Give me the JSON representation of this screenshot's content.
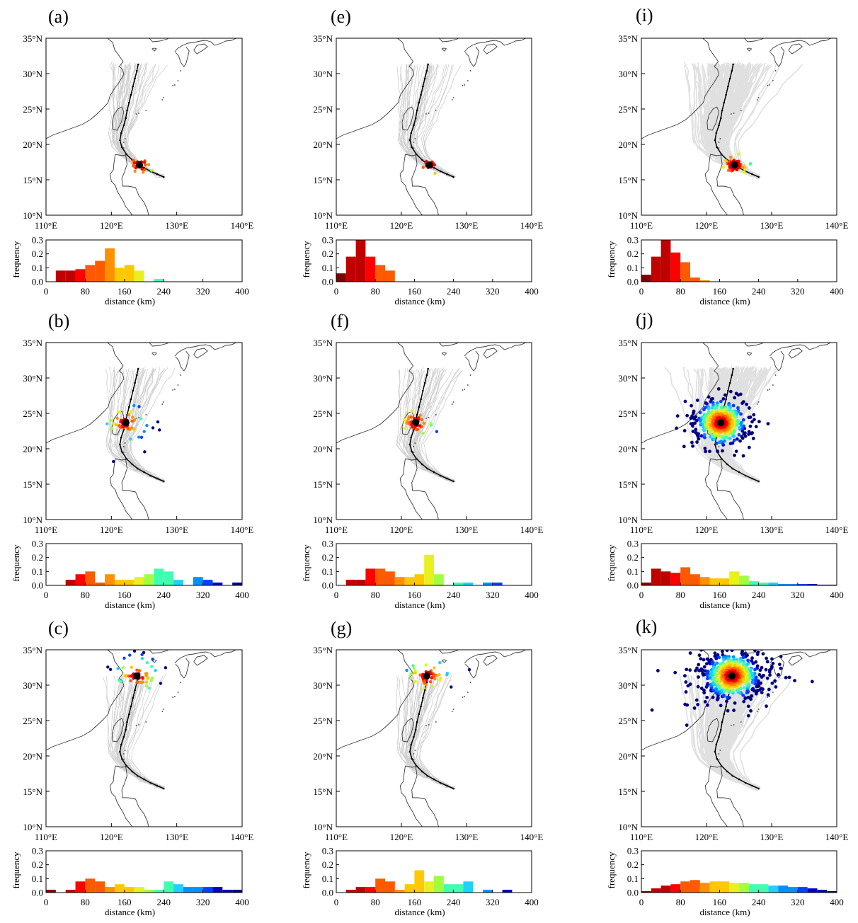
{
  "figure": {
    "map_axes": {
      "lat_ticks": [
        "35°N",
        "30°N",
        "25°N",
        "20°N",
        "15°N",
        "10°N"
      ],
      "lon_ticks": [
        "110°E",
        "120°E",
        "130°E",
        "140°E"
      ],
      "lon_range": [
        110,
        140
      ],
      "lat_range": [
        10,
        35
      ]
    },
    "hist_axes": {
      "ylabel": "frequency",
      "xlabel": "distance (km)",
      "yticks": [
        "0.3",
        "0.2",
        "0.1",
        "0.0"
      ],
      "xticks": [
        "0",
        "80",
        "160",
        "240",
        "320",
        "400"
      ],
      "ylim": [
        0,
        0.3
      ],
      "xlim": [
        0,
        400
      ]
    },
    "colors": {
      "coast": "#3a3a3a",
      "ensemble_tracks": "#c8c8c8",
      "observed_track": "#000000",
      "colormap": [
        "#7f0000",
        "#c00000",
        "#ff0000",
        "#ff5a00",
        "#ff9000",
        "#ffc800",
        "#e8f020",
        "#a0ff40",
        "#40ffb0",
        "#20d0ff",
        "#0090ff",
        "#0040ff",
        "#0000c0",
        "#00007f"
      ]
    },
    "observed_track": [
      {
        "lon": 128.0,
        "lat": 15.4
      },
      {
        "lon": 127.0,
        "lat": 15.8
      },
      {
        "lon": 126.0,
        "lat": 16.2
      },
      {
        "lon": 125.0,
        "lat": 16.7
      },
      {
        "lon": 124.0,
        "lat": 17.2
      },
      {
        "lon": 123.2,
        "lat": 17.8
      },
      {
        "lon": 122.3,
        "lat": 18.6
      },
      {
        "lon": 121.6,
        "lat": 19.6
      },
      {
        "lon": 121.3,
        "lat": 20.6
      },
      {
        "lon": 121.5,
        "lat": 21.6
      },
      {
        "lon": 121.9,
        "lat": 22.7
      },
      {
        "lon": 122.2,
        "lat": 23.7
      },
      {
        "lon": 122.4,
        "lat": 24.8
      },
      {
        "lon": 122.7,
        "lat": 25.9
      },
      {
        "lon": 123.0,
        "lat": 27.0
      },
      {
        "lon": 123.3,
        "lat": 28.2
      },
      {
        "lon": 123.6,
        "lat": 29.3
      },
      {
        "lon": 123.9,
        "lat": 30.4
      },
      {
        "lon": 124.1,
        "lat": 31.3
      }
    ]
  },
  "panels": [
    {
      "label": "(a)",
      "center": {
        "lon": 124.3,
        "lat": 17.1
      },
      "tracks": "sparse",
      "points": {
        "n": 30,
        "spread": 1.0
      },
      "chart_data": {
        "type": "bar",
        "bin_width": 20,
        "xlabel": "distance (km)",
        "ylabel": "frequency",
        "ylim": [
          0,
          0.3
        ],
        "xlim": [
          0,
          400
        ],
        "bins": [
          {
            "x": 20,
            "y": 0.08
          },
          {
            "x": 40,
            "y": 0.08
          },
          {
            "x": 60,
            "y": 0.09
          },
          {
            "x": 80,
            "y": 0.12
          },
          {
            "x": 100,
            "y": 0.15
          },
          {
            "x": 120,
            "y": 0.24
          },
          {
            "x": 140,
            "y": 0.1
          },
          {
            "x": 160,
            "y": 0.12
          },
          {
            "x": 180,
            "y": 0.08
          },
          {
            "x": 220,
            "y": 0.02
          }
        ]
      }
    },
    {
      "label": "(b)",
      "center": {
        "lon": 122.2,
        "lat": 23.7
      },
      "tracks": "sparse",
      "points": {
        "n": 60,
        "spread": 2.4
      },
      "chart_data": {
        "type": "bar",
        "bin_width": 20,
        "xlabel": "distance (km)",
        "ylabel": "frequency",
        "ylim": [
          0,
          0.3
        ],
        "xlim": [
          0,
          400
        ],
        "bins": [
          {
            "x": 40,
            "y": 0.04
          },
          {
            "x": 60,
            "y": 0.08
          },
          {
            "x": 80,
            "y": 0.1
          },
          {
            "x": 100,
            "y": 0.02
          },
          {
            "x": 120,
            "y": 0.08
          },
          {
            "x": 140,
            "y": 0.04
          },
          {
            "x": 160,
            "y": 0.04
          },
          {
            "x": 180,
            "y": 0.06
          },
          {
            "x": 200,
            "y": 0.08
          },
          {
            "x": 220,
            "y": 0.12
          },
          {
            "x": 240,
            "y": 0.1
          },
          {
            "x": 260,
            "y": 0.04
          },
          {
            "x": 300,
            "y": 0.06
          },
          {
            "x": 320,
            "y": 0.04
          },
          {
            "x": 340,
            "y": 0.02
          },
          {
            "x": 380,
            "y": 0.02
          }
        ]
      }
    },
    {
      "label": "(c)",
      "center": {
        "lon": 123.9,
        "lat": 31.3
      },
      "tracks": "sparse",
      "points": {
        "n": 60,
        "spread": 2.8
      },
      "chart_data": {
        "type": "bar",
        "bin_width": 20,
        "xlabel": "distance (km)",
        "ylabel": "frequency",
        "ylim": [
          0,
          0.3
        ],
        "xlim": [
          0,
          400
        ],
        "bins": [
          {
            "x": 0,
            "y": 0.02
          },
          {
            "x": 40,
            "y": 0.02
          },
          {
            "x": 60,
            "y": 0.08
          },
          {
            "x": 80,
            "y": 0.1
          },
          {
            "x": 100,
            "y": 0.08
          },
          {
            "x": 120,
            "y": 0.04
          },
          {
            "x": 140,
            "y": 0.06
          },
          {
            "x": 160,
            "y": 0.04
          },
          {
            "x": 180,
            "y": 0.04
          },
          {
            "x": 200,
            "y": 0.02
          },
          {
            "x": 220,
            "y": 0.02
          },
          {
            "x": 240,
            "y": 0.08
          },
          {
            "x": 260,
            "y": 0.06
          },
          {
            "x": 280,
            "y": 0.04
          },
          {
            "x": 300,
            "y": 0.04
          },
          {
            "x": 320,
            "y": 0.04
          },
          {
            "x": 340,
            "y": 0.04
          },
          {
            "x": 360,
            "y": 0.02
          },
          {
            "x": 380,
            "y": 0.02
          }
        ]
      }
    },
    {
      "label": "(e)",
      "center": {
        "lon": 124.3,
        "lat": 17.1
      },
      "tracks": "sparse",
      "points": {
        "n": 25,
        "spread": 0.7
      },
      "chart_data": {
        "type": "bar",
        "bin_width": 20,
        "xlabel": "distance (km)",
        "ylabel": "frequency",
        "ylim": [
          0,
          0.3
        ],
        "xlim": [
          0,
          400
        ],
        "bins": [
          {
            "x": 0,
            "y": 0.06
          },
          {
            "x": 20,
            "y": 0.18
          },
          {
            "x": 40,
            "y": 0.3
          },
          {
            "x": 60,
            "y": 0.18
          },
          {
            "x": 80,
            "y": 0.12
          },
          {
            "x": 100,
            "y": 0.08
          }
        ]
      }
    },
    {
      "label": "(f)",
      "center": {
        "lon": 122.2,
        "lat": 23.7
      },
      "tracks": "sparse",
      "points": {
        "n": 50,
        "spread": 1.8
      },
      "chart_data": {
        "type": "bar",
        "bin_width": 20,
        "xlabel": "distance (km)",
        "ylabel": "frequency",
        "ylim": [
          0,
          0.3
        ],
        "xlim": [
          0,
          400
        ],
        "bins": [
          {
            "x": 20,
            "y": 0.04
          },
          {
            "x": 40,
            "y": 0.04
          },
          {
            "x": 60,
            "y": 0.12
          },
          {
            "x": 80,
            "y": 0.12
          },
          {
            "x": 100,
            "y": 0.1
          },
          {
            "x": 120,
            "y": 0.06
          },
          {
            "x": 140,
            "y": 0.06
          },
          {
            "x": 160,
            "y": 0.08
          },
          {
            "x": 180,
            "y": 0.22
          },
          {
            "x": 200,
            "y": 0.08
          },
          {
            "x": 240,
            "y": 0.02
          },
          {
            "x": 260,
            "y": 0.02
          },
          {
            "x": 300,
            "y": 0.02
          },
          {
            "x": 320,
            "y": 0.02
          }
        ]
      }
    },
    {
      "label": "(g)",
      "center": {
        "lon": 123.9,
        "lat": 31.3
      },
      "tracks": "sparse",
      "points": {
        "n": 55,
        "spread": 2.2
      },
      "chart_data": {
        "type": "bar",
        "bin_width": 20,
        "xlabel": "distance (km)",
        "ylabel": "frequency",
        "ylim": [
          0,
          0.3
        ],
        "xlim": [
          0,
          400
        ],
        "bins": [
          {
            "x": 20,
            "y": 0.02
          },
          {
            "x": 40,
            "y": 0.04
          },
          {
            "x": 60,
            "y": 0.04
          },
          {
            "x": 80,
            "y": 0.1
          },
          {
            "x": 100,
            "y": 0.08
          },
          {
            "x": 120,
            "y": 0.02
          },
          {
            "x": 140,
            "y": 0.06
          },
          {
            "x": 160,
            "y": 0.16
          },
          {
            "x": 180,
            "y": 0.08
          },
          {
            "x": 200,
            "y": 0.12
          },
          {
            "x": 220,
            "y": 0.06
          },
          {
            "x": 240,
            "y": 0.06
          },
          {
            "x": 260,
            "y": 0.08
          },
          {
            "x": 300,
            "y": 0.02
          },
          {
            "x": 340,
            "y": 0.02
          }
        ]
      }
    },
    {
      "label": "(i)",
      "center": {
        "lon": 124.3,
        "lat": 17.1
      },
      "tracks": "dense",
      "points": {
        "n": 120,
        "spread": 0.8
      },
      "chart_data": {
        "type": "bar",
        "bin_width": 20,
        "xlabel": "distance (km)",
        "ylabel": "frequency",
        "ylim": [
          0,
          0.3
        ],
        "xlim": [
          0,
          400
        ],
        "bins": [
          {
            "x": 0,
            "y": 0.05
          },
          {
            "x": 20,
            "y": 0.18
          },
          {
            "x": 40,
            "y": 0.3
          },
          {
            "x": 60,
            "y": 0.21
          },
          {
            "x": 80,
            "y": 0.14
          },
          {
            "x": 100,
            "y": 0.03
          },
          {
            "x": 120,
            "y": 0.01
          }
        ]
      }
    },
    {
      "label": "(j)",
      "center": {
        "lon": 122.2,
        "lat": 23.7
      },
      "tracks": "dense",
      "points": {
        "n": 700,
        "spread": 2.8
      },
      "chart_data": {
        "type": "bar",
        "bin_width": 20,
        "xlabel": "distance (km)",
        "ylabel": "frequency",
        "ylim": [
          0,
          0.3
        ],
        "xlim": [
          0,
          400
        ],
        "bins": [
          {
            "x": 0,
            "y": 0.02
          },
          {
            "x": 20,
            "y": 0.12
          },
          {
            "x": 40,
            "y": 0.1
          },
          {
            "x": 60,
            "y": 0.09
          },
          {
            "x": 80,
            "y": 0.13
          },
          {
            "x": 100,
            "y": 0.08
          },
          {
            "x": 120,
            "y": 0.06
          },
          {
            "x": 140,
            "y": 0.05
          },
          {
            "x": 160,
            "y": 0.05
          },
          {
            "x": 180,
            "y": 0.1
          },
          {
            "x": 200,
            "y": 0.07
          },
          {
            "x": 220,
            "y": 0.03
          },
          {
            "x": 240,
            "y": 0.02
          },
          {
            "x": 260,
            "y": 0.02
          },
          {
            "x": 280,
            "y": 0.01
          },
          {
            "x": 300,
            "y": 0.01
          },
          {
            "x": 320,
            "y": 0.01
          },
          {
            "x": 340,
            "y": 0.01
          },
          {
            "x": 360,
            "y": 0.005
          },
          {
            "x": 380,
            "y": 0.005
          }
        ]
      }
    },
    {
      "label": "(k)",
      "center": {
        "lon": 123.9,
        "lat": 31.3
      },
      "tracks": "dense",
      "points": {
        "n": 900,
        "spread": 3.4
      },
      "chart_data": {
        "type": "bar",
        "bin_width": 20,
        "xlabel": "distance (km)",
        "ylabel": "frequency",
        "ylim": [
          0,
          0.3
        ],
        "xlim": [
          0,
          400
        ],
        "bins": [
          {
            "x": 0,
            "y": 0.01
          },
          {
            "x": 20,
            "y": 0.03
          },
          {
            "x": 40,
            "y": 0.05
          },
          {
            "x": 60,
            "y": 0.06
          },
          {
            "x": 80,
            "y": 0.08
          },
          {
            "x": 100,
            "y": 0.09
          },
          {
            "x": 120,
            "y": 0.07
          },
          {
            "x": 140,
            "y": 0.08
          },
          {
            "x": 160,
            "y": 0.08
          },
          {
            "x": 180,
            "y": 0.07
          },
          {
            "x": 200,
            "y": 0.07
          },
          {
            "x": 220,
            "y": 0.06
          },
          {
            "x": 240,
            "y": 0.06
          },
          {
            "x": 260,
            "y": 0.05
          },
          {
            "x": 280,
            "y": 0.05
          },
          {
            "x": 300,
            "y": 0.04
          },
          {
            "x": 320,
            "y": 0.04
          },
          {
            "x": 340,
            "y": 0.03
          },
          {
            "x": 360,
            "y": 0.02
          },
          {
            "x": 380,
            "y": 0.01
          }
        ]
      }
    }
  ]
}
